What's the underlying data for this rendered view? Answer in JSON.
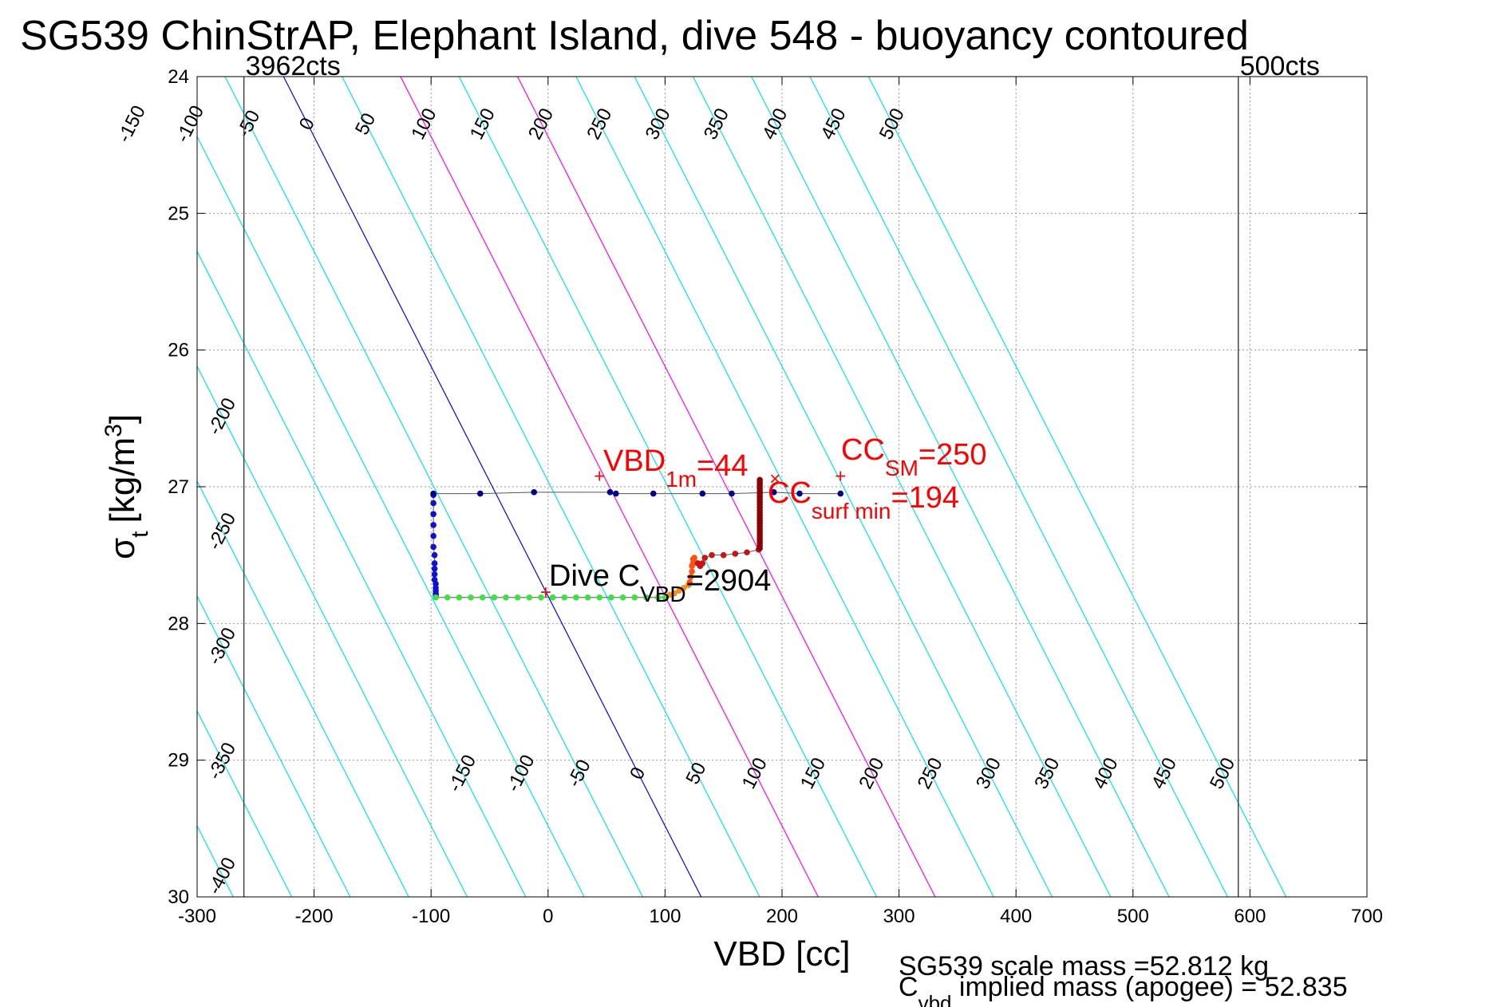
{
  "chart_data": {
    "type": "scatter",
    "title": "SG539 ChinStrAP, Elephant Island, dive 548 - buoyancy contoured",
    "xlabel": "VBD [cc]",
    "ylabel_main": "σ",
    "ylabel_sub": "t",
    "ylabel_unit": "[kg/m",
    "ylabel_sup": "3",
    "ylabel_close": "]",
    "xlim": [
      -300,
      700
    ],
    "ylim": [
      24,
      30
    ],
    "y_reversed": true,
    "grid": true,
    "x_ticks": [
      -300,
      -200,
      -100,
      0,
      100,
      200,
      300,
      400,
      500,
      600,
      700
    ],
    "x_tick_labels": [
      "-300",
      "-200",
      "-100",
      "0",
      "100",
      "200",
      "300",
      "400",
      "500",
      "600",
      "700"
    ],
    "y_ticks": [
      24,
      25,
      26,
      27,
      28,
      29,
      30
    ],
    "y_tick_labels": [
      "24",
      "25",
      "26",
      "27",
      "28",
      "29",
      "30"
    ],
    "vlines": [
      {
        "x": -260,
        "label": "3962cts"
      },
      {
        "x": 590,
        "label": "500cts"
      }
    ],
    "contours": {
      "values": [
        -400,
        -350,
        -300,
        -250,
        -200,
        -150,
        -100,
        -50,
        0,
        50,
        100,
        150,
        200,
        250,
        300,
        350,
        400,
        450,
        500
      ],
      "a": 0,
      "b": 59.5,
      "ref_sigma": 27.8,
      "colors": {
        "default": "#00e5e5",
        "zero": "#0000ff",
        "magenta": "#ff00ff"
      },
      "magenta_values": [
        100,
        200
      ],
      "top_labels": [
        "-150",
        "-100",
        "-50",
        "0",
        "50",
        "100",
        "150",
        "200",
        "250",
        "300",
        "350",
        "400",
        "450",
        "500"
      ],
      "left_labels": [
        "-400",
        "-350",
        "-300",
        "-250",
        "-200"
      ],
      "bottom_labels": [
        "-150",
        "-100",
        "-50",
        "0",
        "50",
        "100",
        "150",
        "200",
        "250",
        "300",
        "350",
        "400",
        "450",
        "500"
      ]
    },
    "series": [
      {
        "x": [
          -98,
          -98,
          -98,
          -98,
          -98,
          -98,
          -97,
          -97,
          -97,
          -97,
          -97,
          -96,
          -96,
          -96,
          -96,
          -96,
          -96
        ],
        "y": [
          27.06,
          27.12,
          27.2,
          27.28,
          27.36,
          27.44,
          27.5,
          27.56,
          27.6,
          27.64,
          27.68,
          27.71,
          27.74,
          27.76,
          27.78,
          27.79,
          27.8
        ],
        "color": "#1010d0"
      },
      {
        "x": [
          -96,
          -86,
          -76,
          -66,
          -56,
          -46,
          -36,
          -26,
          -16,
          -6,
          4,
          14,
          24,
          34,
          44,
          54,
          64,
          74,
          84,
          94,
          100
        ],
        "y": [
          27.81,
          27.81,
          27.81,
          27.81,
          27.81,
          27.81,
          27.81,
          27.81,
          27.81,
          27.81,
          27.81,
          27.81,
          27.81,
          27.81,
          27.81,
          27.81,
          27.81,
          27.81,
          27.81,
          27.81,
          27.81
        ],
        "color": "#40e040"
      },
      {
        "x": [
          104,
          108,
          112,
          116,
          120
        ],
        "y": [
          27.79,
          27.78,
          27.76,
          27.74,
          27.72
        ],
        "color": "#f59020"
      },
      {
        "x": [
          121,
          122,
          123,
          123,
          124,
          124,
          125
        ],
        "y": [
          27.7,
          27.66,
          27.62,
          27.58,
          27.56,
          27.53,
          27.52
        ],
        "color": "#ff5010"
      },
      {
        "x": [
          128,
          130,
          132,
          134,
          140,
          150,
          160,
          170,
          180
        ],
        "y": [
          27.56,
          27.58,
          27.56,
          27.52,
          27.5,
          27.5,
          27.49,
          27.48,
          27.46
        ],
        "color": "#c81414"
      },
      {
        "x": [
          181,
          181,
          181,
          181,
          181,
          181,
          181,
          181,
          181,
          181,
          181,
          181,
          181,
          181,
          181,
          181,
          181,
          181,
          181,
          181,
          181,
          181,
          181,
          181,
          181,
          181
        ],
        "y": [
          26.95,
          26.97,
          26.99,
          27.01,
          27.03,
          27.05,
          27.07,
          27.09,
          27.11,
          27.13,
          27.15,
          27.17,
          27.19,
          27.21,
          27.23,
          27.25,
          27.27,
          27.29,
          27.31,
          27.33,
          27.35,
          27.37,
          27.39,
          27.41,
          27.43,
          27.45
        ],
        "color": "#8b0000"
      },
      {
        "x": [
          -98,
          -58,
          -12,
          53,
          58,
          90,
          132,
          157,
          193,
          215,
          250
        ],
        "y": [
          27.05,
          27.05,
          27.04,
          27.04,
          27.05,
          27.05,
          27.05,
          27.05,
          27.04,
          27.05,
          27.05
        ],
        "color": "#00008b"
      }
    ],
    "markers": [
      {
        "x": 44,
        "y": 26.93,
        "symbol": "+",
        "color": "#ff0000"
      },
      {
        "x": 250,
        "y": 26.93,
        "symbol": "+",
        "color": "#ff0000"
      },
      {
        "x": -2,
        "y": 27.78,
        "symbol": "+",
        "color": "#ff0000"
      },
      {
        "x": 194,
        "y": 26.95,
        "symbol": "x",
        "color": "#ff0000"
      }
    ],
    "annotations": {
      "vbd1m": {
        "main": "VBD",
        "sub": "1m",
        "rest": "=44",
        "color": "#ff0000"
      },
      "ccsm": {
        "main": "CC",
        "sub": "SM",
        "rest": "=250",
        "color": "#ff0000"
      },
      "ccsurf": {
        "main": "CC",
        "sub": "surf min",
        "rest": "=194",
        "color": "#ff0000"
      },
      "divec": {
        "main": "Dive C",
        "sub": "VBD",
        "rest": "=2904",
        "color": "#000000"
      }
    },
    "footer": {
      "line1": "SG539 scale mass =52.812 kg",
      "line2_main": "C",
      "line2_sub": "vbd",
      "line2_rest": " implied mass (apogee) = 52.835"
    }
  }
}
